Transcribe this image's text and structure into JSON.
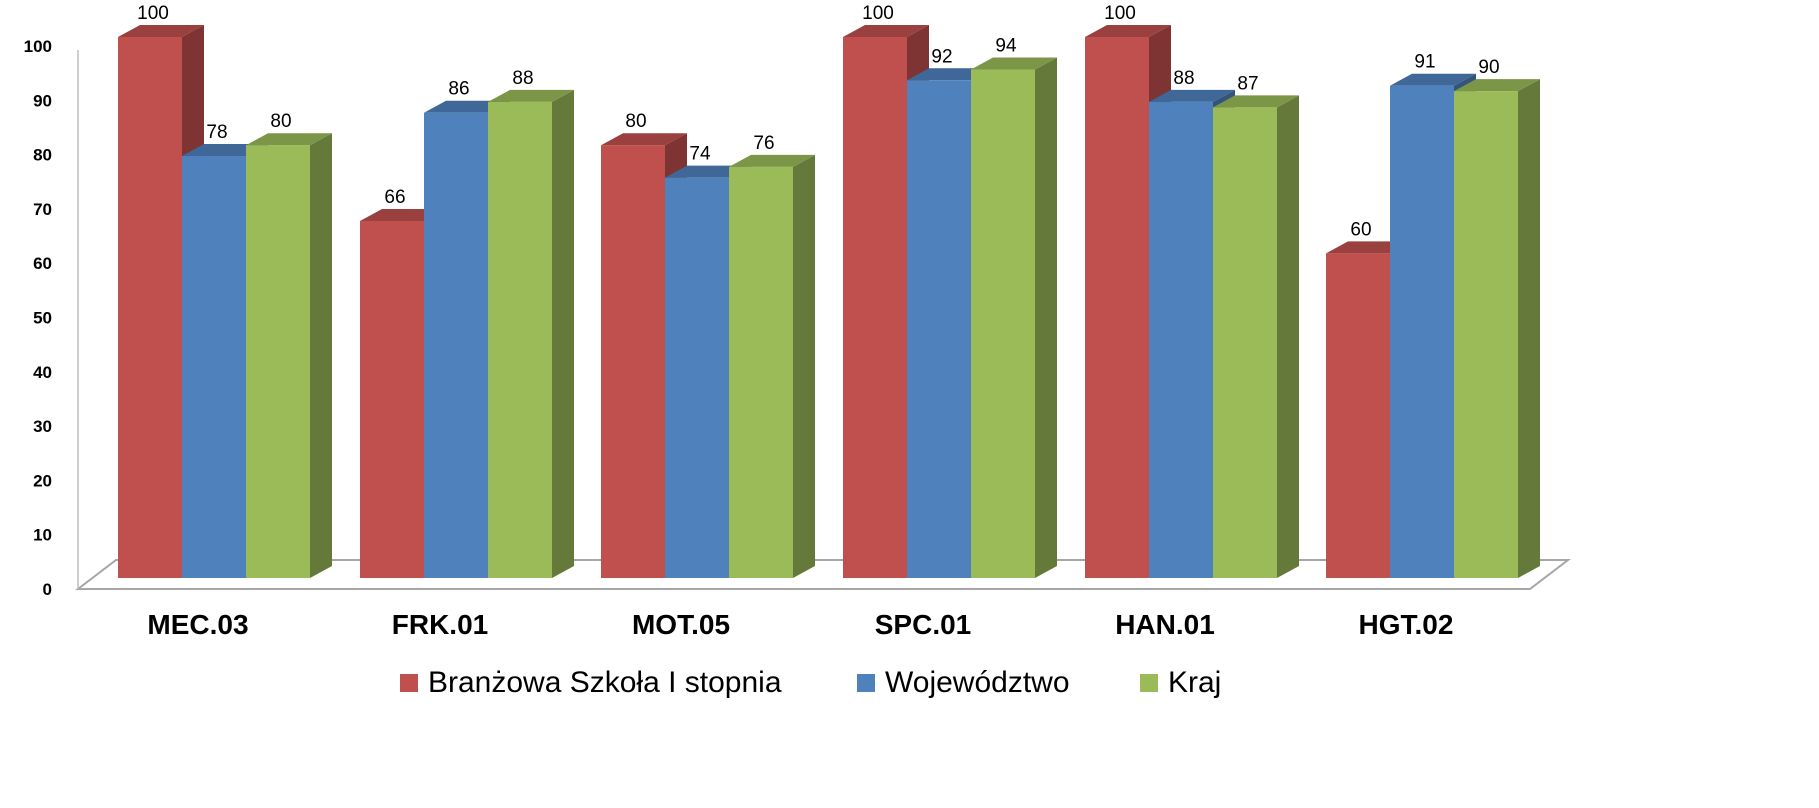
{
  "chart_data": {
    "type": "bar",
    "categories": [
      "MEC.03",
      "FRK.01",
      "MOT.05",
      "SPC.01",
      "HAN.01",
      "HGT.02"
    ],
    "series": [
      {
        "name": "Branżowa Szkoła I stopnia",
        "values": [
          100,
          66,
          80,
          100,
          100,
          60
        ],
        "color": "#c0504d"
      },
      {
        "name": "Województwo",
        "values": [
          78,
          86,
          74,
          92,
          88,
          91
        ],
        "color": "#4f81bd"
      },
      {
        "name": "Kraj",
        "values": [
          80,
          88,
          76,
          94,
          87,
          90
        ],
        "color": "#9bbb59"
      }
    ],
    "ylim": [
      0,
      100
    ],
    "yticks": [
      0,
      10,
      20,
      30,
      40,
      50,
      60,
      70,
      80,
      90,
      100
    ],
    "style": "3d-clustered-column",
    "grid": false,
    "legend_position": "bottom",
    "data_labels": true
  }
}
